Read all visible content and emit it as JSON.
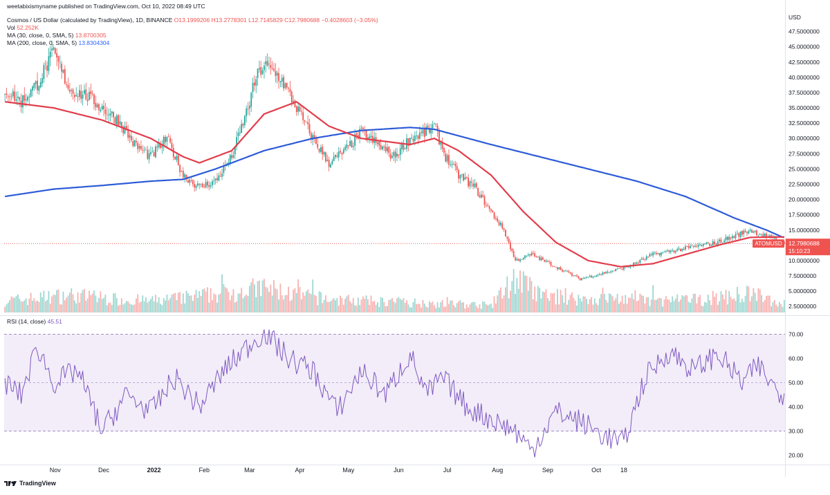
{
  "header": {
    "publisher": "weetabixismyname published on TradingView.com, Oct 10, 2022 08:49 UTC",
    "symbol": "Cosmos / US Dollar (calculated by TradingView), 1D, BINANCE",
    "ohlc": {
      "open": "O13.1999206",
      "high": "H13.2778301",
      "low": "L12.7145829",
      "close": "C12.7980688",
      "change": "−0.4028603 (−3.05%)"
    },
    "vol_label": "Vol",
    "vol_value": "52.252K",
    "ma30_label": "MA (30, close, 0, SMA, 5)",
    "ma30_value": "13.8700305",
    "ma200_label": "MA (200, close, 0, SMA, 5)",
    "ma200_value": "13.8304304"
  },
  "rsi_panel": {
    "label": "RSI (14, close)",
    "value": "45.51"
  },
  "price_tag": {
    "symbol": "ATOMUSD",
    "price": "12.7980688",
    "countdown": "15:10:23"
  },
  "footer": {
    "brand": "TradingView"
  },
  "colors": {
    "up": "#26a69a",
    "down": "#ef5350",
    "ma30": "#e23c4b",
    "ma200": "#2c5bd8",
    "rsi": "#7e57c2",
    "rsi_band": "#ede7f6"
  },
  "chart_data": {
    "type": "line",
    "title": "Cosmos / US Dollar (calculated by TradingView), 1D, BINANCE",
    "currency": "USD",
    "price_axis": {
      "label": "USD",
      "ticks": [
        "47.5000000",
        "45.0000000",
        "42.5000000",
        "40.0000000",
        "37.5000000",
        "35.0000000",
        "32.5000000",
        "30.0000000",
        "27.5000000",
        "25.0000000",
        "22.5000000",
        "20.0000000",
        "17.5000000",
        "15.0000000",
        "12.5000000",
        "10.0000000",
        "7.5000000",
        "5.0000000",
        "2.5000000"
      ],
      "range": [
        0,
        50
      ]
    },
    "rsi_axis": {
      "ticks": [
        "70.00",
        "60.00",
        "50.00",
        "40.00",
        "30.00",
        "20.00"
      ],
      "range": [
        15,
        75
      ],
      "band": [
        30,
        70
      ],
      "mid": 50
    },
    "x_ticks": [
      "Nov",
      "Dec",
      "2022",
      "Feb",
      "Mar",
      "Apr",
      "May",
      "Jun",
      "Jul",
      "Aug",
      "Sep",
      "Oct",
      "18"
    ],
    "x_tick_days": [
      31,
      61,
      92,
      123,
      151,
      182,
      212,
      243,
      273,
      304,
      335,
      365,
      382
    ],
    "last_close": 12.8,
    "anchors_close": [
      [
        0,
        38
      ],
      [
        10,
        36
      ],
      [
        20,
        39
      ],
      [
        30,
        44
      ],
      [
        40,
        38
      ],
      [
        50,
        37
      ],
      [
        60,
        35
      ],
      [
        70,
        33
      ],
      [
        80,
        29
      ],
      [
        90,
        27
      ],
      [
        100,
        30
      ],
      [
        110,
        24
      ],
      [
        120,
        22
      ],
      [
        130,
        23
      ],
      [
        140,
        27
      ],
      [
        150,
        35
      ],
      [
        155,
        40
      ],
      [
        160,
        42
      ],
      [
        170,
        40
      ],
      [
        180,
        35
      ],
      [
        190,
        30
      ],
      [
        200,
        26
      ],
      [
        210,
        28
      ],
      [
        220,
        31
      ],
      [
        230,
        29
      ],
      [
        240,
        27
      ],
      [
        250,
        30
      ],
      [
        260,
        31
      ],
      [
        265,
        32
      ],
      [
        272,
        27
      ],
      [
        280,
        24
      ],
      [
        290,
        22
      ],
      [
        300,
        18
      ],
      [
        308,
        15
      ],
      [
        315,
        10
      ],
      [
        325,
        11
      ],
      [
        340,
        9
      ],
      [
        355,
        7
      ],
      [
        370,
        8
      ],
      [
        385,
        9
      ],
      [
        400,
        11
      ],
      [
        420,
        12
      ],
      [
        440,
        13
      ],
      [
        460,
        15
      ],
      [
        470,
        14
      ],
      [
        480,
        12.8
      ]
    ],
    "ma30_anchors": [
      [
        0,
        36
      ],
      [
        30,
        35
      ],
      [
        60,
        33
      ],
      [
        90,
        30
      ],
      [
        110,
        27
      ],
      [
        120,
        26
      ],
      [
        140,
        28
      ],
      [
        160,
        34
      ],
      [
        180,
        36
      ],
      [
        200,
        32
      ],
      [
        220,
        30
      ],
      [
        250,
        29
      ],
      [
        265,
        30
      ],
      [
        280,
        28
      ],
      [
        300,
        24
      ],
      [
        320,
        18
      ],
      [
        340,
        13
      ],
      [
        360,
        10
      ],
      [
        380,
        9
      ],
      [
        400,
        9.5
      ],
      [
        420,
        11
      ],
      [
        440,
        12.5
      ],
      [
        460,
        13.8
      ],
      [
        480,
        13.87
      ]
    ],
    "ma200_anchors": [
      [
        0,
        20.5
      ],
      [
        30,
        21.7
      ],
      [
        60,
        22.3
      ],
      [
        90,
        23
      ],
      [
        110,
        23.3
      ],
      [
        130,
        25
      ],
      [
        160,
        28
      ],
      [
        190,
        30
      ],
      [
        220,
        31.3
      ],
      [
        250,
        31.8
      ],
      [
        265,
        31.5
      ],
      [
        300,
        29
      ],
      [
        330,
        27
      ],
      [
        360,
        25
      ],
      [
        390,
        23
      ],
      [
        420,
        20.5
      ],
      [
        450,
        17
      ],
      [
        470,
        15
      ],
      [
        480,
        13.83
      ]
    ],
    "rsi_anchors": [
      [
        0,
        50
      ],
      [
        10,
        45
      ],
      [
        20,
        65
      ],
      [
        30,
        50
      ],
      [
        45,
        55
      ],
      [
        60,
        30
      ],
      [
        75,
        45
      ],
      [
        90,
        38
      ],
      [
        105,
        52
      ],
      [
        120,
        40
      ],
      [
        135,
        55
      ],
      [
        150,
        65
      ],
      [
        160,
        71
      ],
      [
        175,
        60
      ],
      [
        190,
        55
      ],
      [
        205,
        38
      ],
      [
        220,
        55
      ],
      [
        235,
        45
      ],
      [
        250,
        62
      ],
      [
        260,
        45
      ],
      [
        270,
        52
      ],
      [
        285,
        40
      ],
      [
        300,
        35
      ],
      [
        315,
        30
      ],
      [
        325,
        22
      ],
      [
        340,
        38
      ],
      [
        355,
        34
      ],
      [
        370,
        28
      ],
      [
        382,
        25
      ],
      [
        395,
        52
      ],
      [
        410,
        63
      ],
      [
        425,
        55
      ],
      [
        440,
        62
      ],
      [
        455,
        50
      ],
      [
        465,
        57
      ],
      [
        475,
        48
      ],
      [
        480,
        45.51
      ]
    ],
    "volume_anchors": [
      [
        0,
        40
      ],
      [
        40,
        60
      ],
      [
        70,
        45
      ],
      [
        90,
        40
      ],
      [
        110,
        50
      ],
      [
        140,
        70
      ],
      [
        160,
        85
      ],
      [
        180,
        60
      ],
      [
        200,
        45
      ],
      [
        220,
        40
      ],
      [
        250,
        35
      ],
      [
        270,
        30
      ],
      [
        300,
        25
      ],
      [
        315,
        120
      ],
      [
        330,
        60
      ],
      [
        360,
        45
      ],
      [
        380,
        50
      ],
      [
        400,
        40
      ],
      [
        430,
        45
      ],
      [
        460,
        65
      ],
      [
        480,
        30
      ]
    ],
    "series": [
      {
        "name": "ATOMUSD",
        "role": "price"
      },
      {
        "name": "MA (30, close, 0, SMA, 5)",
        "role": "ma30"
      },
      {
        "name": "MA (200, close, 0, SMA, 5)",
        "role": "ma200"
      },
      {
        "name": "RSI (14, close)",
        "role": "rsi"
      }
    ],
    "grid": false
  }
}
